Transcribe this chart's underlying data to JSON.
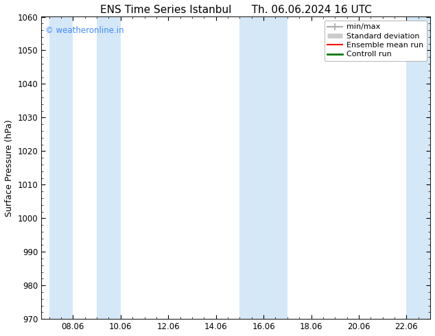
{
  "title_left": "ENS Time Series Istanbul",
  "title_right": "Th. 06.06.2024 16 UTC",
  "ylabel": "Surface Pressure (hPa)",
  "ylim": [
    970,
    1060
  ],
  "yticks": [
    970,
    980,
    990,
    1000,
    1010,
    1020,
    1030,
    1040,
    1050,
    1060
  ],
  "xtick_labels": [
    "08.06",
    "10.06",
    "12.06",
    "14.06",
    "16.06",
    "18.06",
    "20.06",
    "22.06"
  ],
  "watermark": "© weatheronline.in",
  "watermark_color": "#4488ff",
  "bg_color": "#ffffff",
  "plot_bg_color": "#ffffff",
  "shaded_band_color": "#d4e8f8",
  "legend_items": [
    {
      "label": "min/max",
      "color": "#aaaaaa",
      "lw": 1.5,
      "type": "errorbar"
    },
    {
      "label": "Standard deviation",
      "color": "#cccccc",
      "lw": 5,
      "type": "band"
    },
    {
      "label": "Ensemble mean run",
      "color": "#ff0000",
      "lw": 1.5,
      "type": "line"
    },
    {
      "label": "Controll run",
      "color": "#007700",
      "lw": 2,
      "type": "line"
    }
  ],
  "title_fontsize": 11,
  "label_fontsize": 9,
  "tick_fontsize": 8.5,
  "watermark_fontsize": 8.5
}
